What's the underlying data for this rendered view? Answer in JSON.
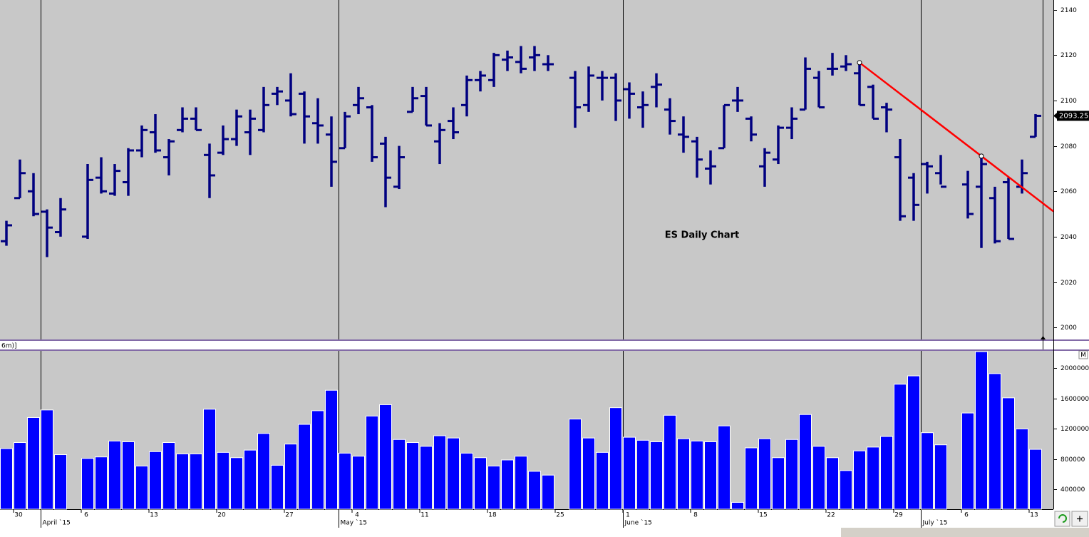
{
  "chart_data": [
    {
      "type": "ohlc",
      "title": "ES Daily Chart",
      "color": "#000080",
      "categories": [
        null,
        "30",
        null,
        null,
        null,
        null,
        "6",
        null,
        null,
        null,
        null,
        "13",
        null,
        null,
        null,
        null,
        "20",
        null,
        null,
        null,
        null,
        "27",
        null,
        null,
        null,
        null,
        "4",
        null,
        null,
        null,
        null,
        "11",
        null,
        null,
        null,
        null,
        "18",
        null,
        null,
        null,
        null,
        "25",
        null,
        null,
        null,
        null,
        "1",
        null,
        null,
        null,
        null,
        "8",
        null,
        null,
        null,
        null,
        "15",
        null,
        null,
        null,
        null,
        "22",
        null,
        null,
        null,
        null,
        "29",
        null,
        null,
        null,
        null,
        "6",
        null,
        null,
        null,
        null,
        "13"
      ],
      "month_labels": [
        {
          "label": "April `15",
          "index": 3
        },
        {
          "label": "May `15",
          "index": 25
        },
        {
          "label": "June `15",
          "index": 46
        },
        {
          "label": "July `15",
          "index": 68
        }
      ],
      "open": [
        2038,
        2057,
        2060,
        2051,
        2042,
        null,
        2040,
        2066,
        2059,
        2064,
        2078,
        2086,
        2075,
        2087,
        2092,
        2076,
        2077,
        2083,
        2086,
        2087,
        2103,
        2100,
        2103,
        2090,
        2085,
        2079,
        2098,
        2097,
        2081,
        2062,
        2095,
        2102,
        2082,
        2091,
        2098,
        2109,
        2109,
        2118,
        2117,
        2119,
        2116,
        null,
        2110,
        2098,
        2110,
        2110,
        2105,
        2097,
        2106,
        2096,
        2085,
        2082,
        2070,
        2079,
        2100,
        2092,
        2071,
        2074,
        2088,
        2096,
        2110,
        2114,
        2115,
        2112,
        2106,
        2097,
        2075,
        2066,
        2072,
        2068,
        null,
        2063,
        2062,
        2057,
        2064,
        2062,
        2084
      ],
      "high": [
        2047,
        2074,
        2068,
        2052,
        2057,
        null,
        2072,
        2075,
        2072,
        2079,
        2089,
        2094,
        2083,
        2097,
        2097,
        2081,
        2089,
        2096,
        2096,
        2106,
        2106,
        2112,
        2104,
        2101,
        2093,
        2095,
        2106,
        2098,
        2084,
        2080,
        2106,
        2106,
        2090,
        2097,
        2111,
        2113,
        2121,
        2122,
        2124,
        2124,
        2120,
        null,
        2113,
        2115,
        2113,
        2112,
        2108,
        2104,
        2112,
        2101,
        2093,
        2084,
        2078,
        2098,
        2106,
        2093,
        2079,
        2089,
        2097,
        2119,
        2113,
        2121,
        2120,
        2117,
        2107,
        2099,
        2083,
        2068,
        2073,
        2076,
        null,
        2069,
        2076,
        2062,
        2066,
        2074,
        2094
      ],
      "low": [
        2036,
        2057,
        2049,
        2031,
        2040,
        null,
        2039,
        2059,
        2058,
        2058,
        2075,
        2077,
        2067,
        2086,
        2087,
        2057,
        2076,
        2080,
        2076,
        2086,
        2098,
        2093,
        2081,
        2081,
        2062,
        2079,
        2094,
        2073,
        2053,
        2061,
        2095,
        2089,
        2072,
        2083,
        2093,
        2104,
        2106,
        2113,
        2112,
        2113,
        2113,
        null,
        2088,
        2095,
        2100,
        2091,
        2092,
        2088,
        2097,
        2085,
        2077,
        2066,
        2063,
        2079,
        2095,
        2082,
        2062,
        2072,
        2083,
        2096,
        2097,
        2111,
        2113,
        2098,
        2092,
        2086,
        2047,
        2047,
        2059,
        2063,
        null,
        2048,
        2035,
        2037,
        2039,
        2059,
        2084
      ],
      "close": [
        2045,
        2068,
        2050,
        2044,
        2052,
        null,
        2065,
        2060,
        2069,
        2078,
        2087,
        2078,
        2082,
        2092,
        2087,
        2067,
        2083,
        2093,
        2092,
        2098,
        2104,
        2094,
        2093,
        2089,
        2073,
        2093,
        2101,
        2075,
        2066,
        2075,
        2101,
        2089,
        2087,
        2086,
        2109,
        2111,
        2120,
        2119,
        2114,
        2120,
        2116,
        null,
        2097,
        2111,
        2110,
        2100,
        2103,
        2098,
        2107,
        2091,
        2084,
        2074,
        2071,
        2098,
        2100,
        2085,
        2077,
        2088,
        2092,
        2114,
        2097,
        2114,
        2116,
        2098,
        2092,
        2096,
        2049,
        2054,
        2071,
        2062,
        null,
        2050,
        2072,
        2038,
        2039,
        2068,
        2093.25
      ],
      "last_price": 2093.25,
      "trendline": {
        "color": "#ff0000",
        "points": [
          {
            "index": 63,
            "value": 2116.7
          },
          {
            "index": 72,
            "value": 2075.5
          }
        ]
      },
      "ylim": [
        1994.7,
        2144.3
      ],
      "yticks": [
        2000,
        2020,
        2040,
        2060,
        2080,
        2100,
        2120,
        2140
      ]
    },
    {
      "type": "bar",
      "color": "#0000ff",
      "axis_marker": "M",
      "legend_text": "6m)]",
      "values": [
        940000,
        1020000,
        1350000,
        1450000,
        860000,
        null,
        810000,
        830000,
        1040000,
        1030000,
        710000,
        900000,
        1020000,
        870000,
        870000,
        1460000,
        890000,
        820000,
        920000,
        1140000,
        720000,
        1000000,
        1260000,
        1440000,
        1710000,
        880000,
        840000,
        1370000,
        1520000,
        1060000,
        1020000,
        970000,
        1110000,
        1080000,
        880000,
        820000,
        710000,
        790000,
        840000,
        640000,
        590000,
        null,
        1330000,
        1080000,
        890000,
        1480000,
        1090000,
        1050000,
        1030000,
        1380000,
        1070000,
        1040000,
        1030000,
        1240000,
        230000,
        950000,
        1070000,
        820000,
        1060000,
        1390000,
        970000,
        820000,
        650000,
        910000,
        960000,
        1100000,
        1790000,
        1900000,
        1150000,
        990000,
        null,
        1410000,
        2220000,
        1930000,
        1610000,
        1200000,
        930000
      ],
      "ylim": [
        140000,
        2230000
      ],
      "yticks": [
        400000,
        800000,
        1200000,
        1600000,
        2000000
      ]
    }
  ]
}
